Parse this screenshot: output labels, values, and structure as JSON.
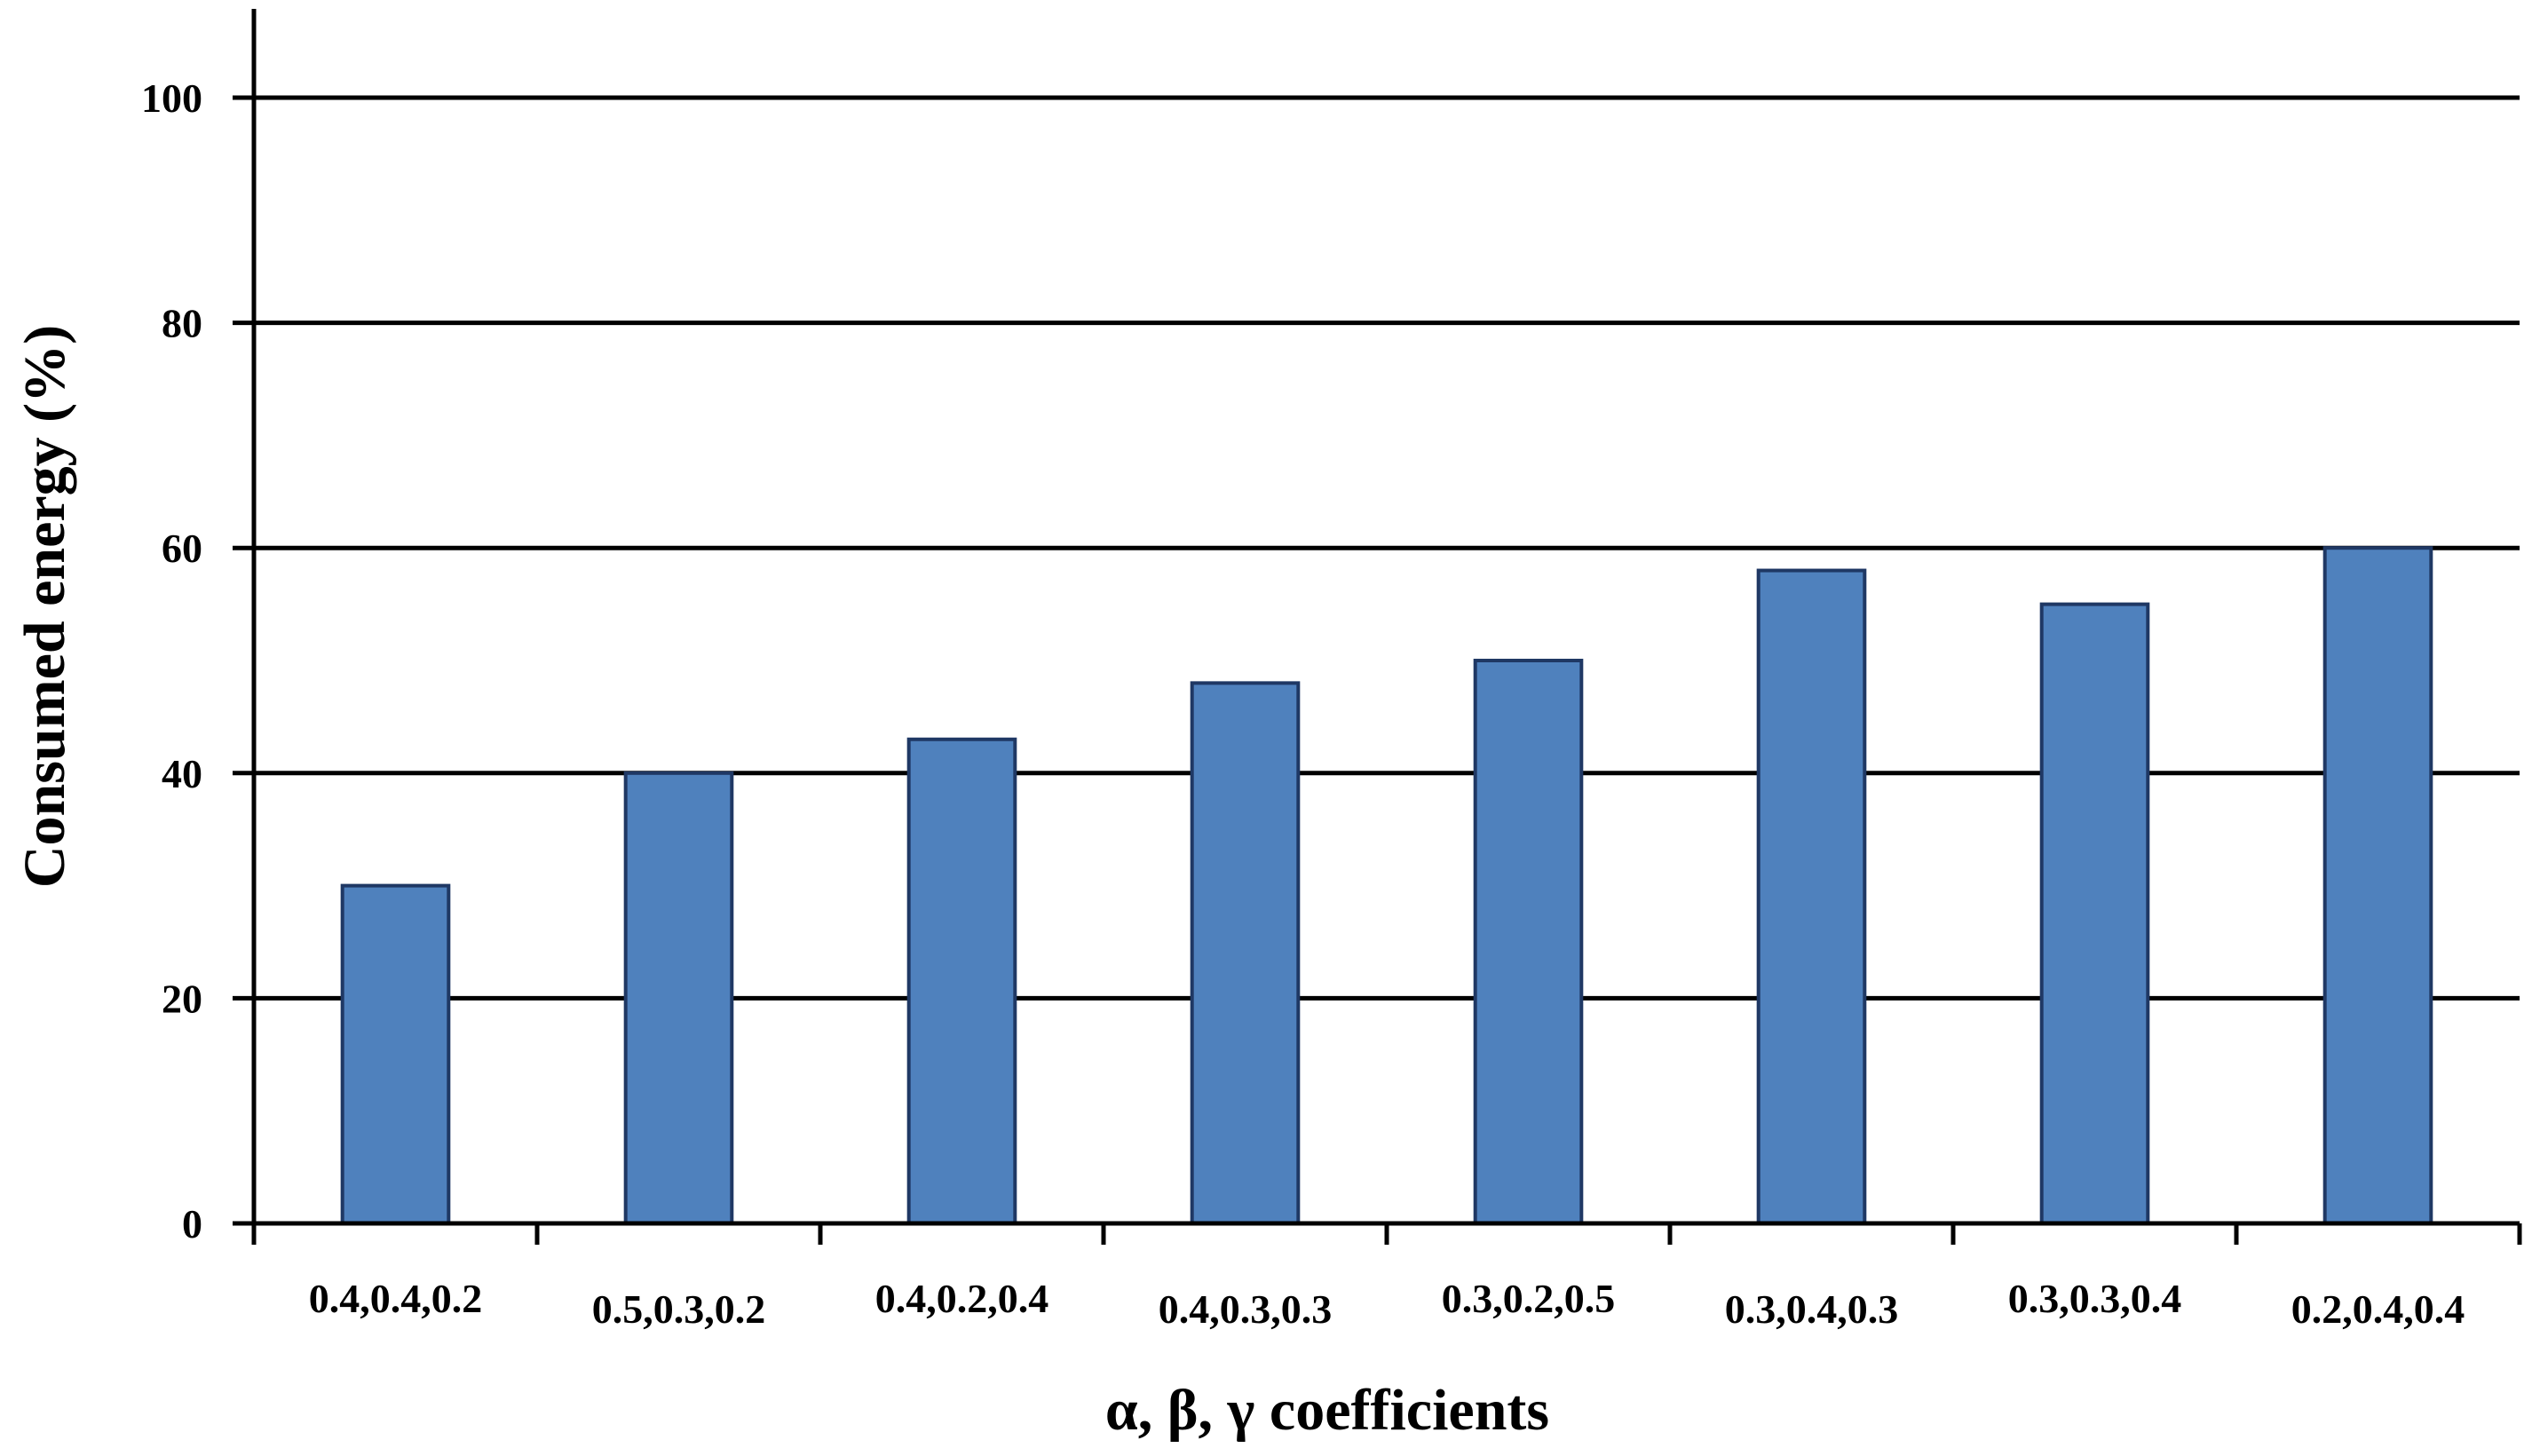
{
  "chart_data": {
    "type": "bar",
    "title": "",
    "xlabel": "α, β, γ coefficients",
    "ylabel": "Consumed energy (%)",
    "categories": [
      "0.4,0.4,0.2",
      "0.5,0.3,0.2",
      "0.4,0.2,0.4",
      "0.4,0.3,0.3",
      "0.3,0.2,0.5",
      "0.3,0.4,0.3",
      "0.3,0.3,0.4",
      "0.2,0.4,0.4"
    ],
    "values": [
      30,
      40,
      43,
      48,
      50,
      58,
      55,
      60
    ],
    "ylim": [
      0,
      100
    ],
    "yticks": [
      0,
      20,
      40,
      60,
      80,
      100
    ],
    "grid": true,
    "legend": "none",
    "colors": {
      "bar": "#4f81bd",
      "bar_edge": "#1f3864",
      "grid": "#000000"
    }
  }
}
